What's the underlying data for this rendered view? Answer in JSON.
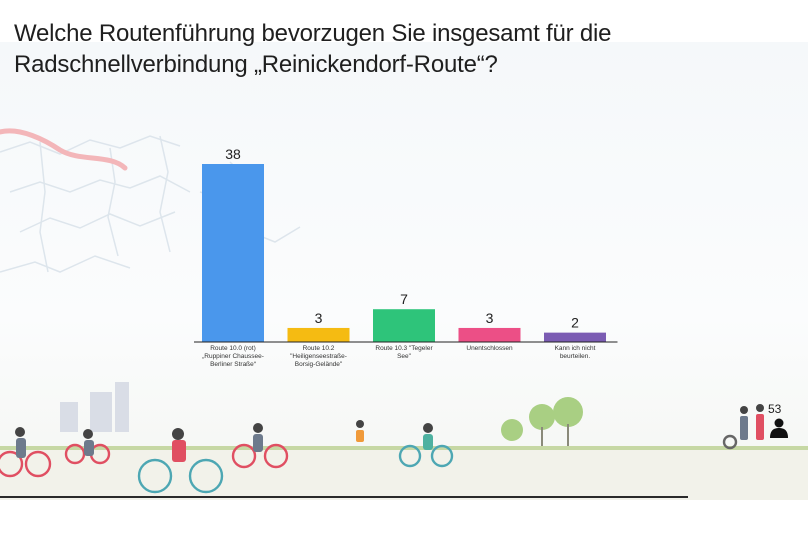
{
  "slide": {
    "title": "Welche Routenführung bevorzugen Sie insgesamt für die Radschnellverbindung „Reinickendorf-Route“?",
    "response_count": "53",
    "response_icon": "person-icon"
  },
  "chart_data": {
    "type": "bar",
    "title": "Welche Routenführung bevorzugen Sie insgesamt für die Radschnellverbindung „Reinickendorf-Route“?",
    "xlabel": "",
    "ylabel": "",
    "grid": false,
    "legend": "none",
    "ylim": [
      0,
      38
    ],
    "categories": [
      [
        "Route 10.0 (rot)",
        "„Ruppiner Chaussee-",
        "Berliner Straße“"
      ],
      [
        "Route 10.2",
        "\"Heiligenseestraße-",
        "Borsig-Gelände\""
      ],
      [
        "Route 10.3 \"Tegeler",
        "See\""
      ],
      [
        "Unentschlossen"
      ],
      [
        "Kann ich nicht",
        "beurteilen."
      ]
    ],
    "values": [
      38,
      3,
      7,
      3,
      2
    ],
    "colors": [
      "#4a97ec",
      "#f5bb12",
      "#2ec47a",
      "#ec4f86",
      "#7b5cb3"
    ]
  }
}
